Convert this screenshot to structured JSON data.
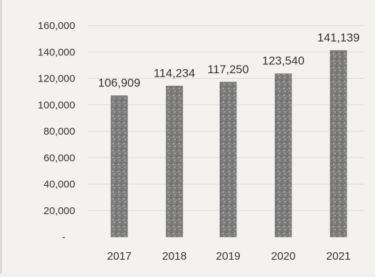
{
  "chart_data": {
    "type": "bar",
    "categories": [
      "2017",
      "2018",
      "2019",
      "2020",
      "2021"
    ],
    "values": [
      106909,
      114234,
      117250,
      123540,
      141139
    ],
    "data_labels": [
      "106,909",
      "114,234",
      "117,250",
      "123,540",
      "141,139"
    ],
    "title": "",
    "xlabel": "",
    "ylabel": "",
    "ylim": [
      0,
      160000
    ],
    "yticks": [
      {
        "value": 0,
        "label": "-"
      },
      {
        "value": 20000,
        "label": "20,000"
      },
      {
        "value": 40000,
        "label": "40,000"
      },
      {
        "value": 60000,
        "label": "60,000"
      },
      {
        "value": 80000,
        "label": "80,000"
      },
      {
        "value": 100000,
        "label": "100,000"
      },
      {
        "value": 120000,
        "label": "120,000"
      },
      {
        "value": 140000,
        "label": "140,000"
      },
      {
        "value": 160000,
        "label": "160,000"
      }
    ],
    "grid": true,
    "legend": "none",
    "colors": {
      "bar": "#7a7a7a",
      "bar_pattern": "#a9a9a9",
      "grid": "#dcdbd7",
      "text": "#333333"
    }
  }
}
